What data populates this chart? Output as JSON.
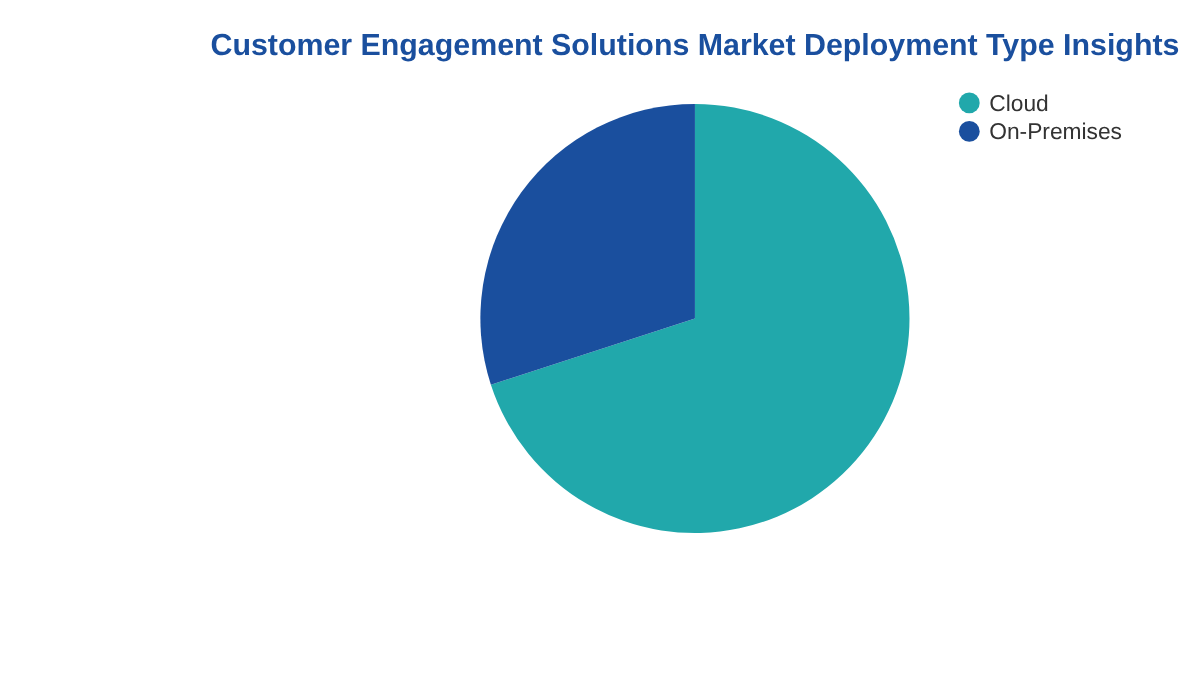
{
  "chart_data": {
    "type": "pie",
    "title": "Customer Engagement Solutions Market Deployment Type Insights",
    "categories": [
      "Cloud",
      "On-Premises"
    ],
    "values": [
      70,
      30
    ],
    "colors": [
      "#21a8ab",
      "#1a4f9e"
    ],
    "legend": "right"
  }
}
